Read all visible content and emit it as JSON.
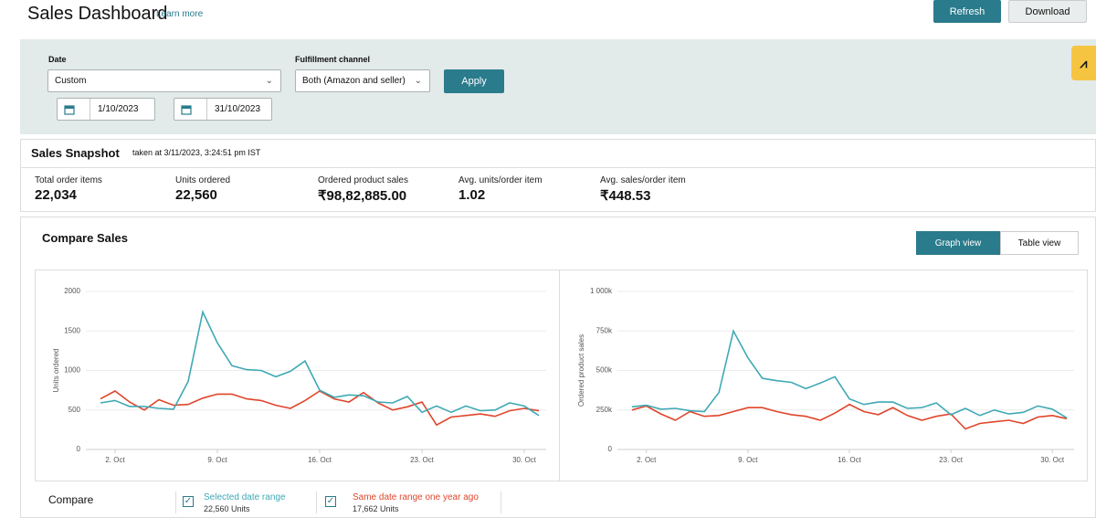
{
  "header": {
    "title": "Sales Dashboard",
    "learn_more": "Learn more",
    "refresh": "Refresh",
    "download": "Download"
  },
  "filters": {
    "date_label": "Date",
    "date_value": "Custom",
    "from": "1/10/2023",
    "to": "31/10/2023",
    "channel_label": "Fulfillment channel",
    "channel_value": "Both (Amazon and seller)",
    "apply": "Apply"
  },
  "snapshot": {
    "title": "Sales Snapshot",
    "taken": "taken at 3/11/2023, 3:24:51 pm IST",
    "metrics": [
      {
        "label": "Total order items",
        "value": "22,034"
      },
      {
        "label": "Units ordered",
        "value": "22,560"
      },
      {
        "label": "Ordered product sales",
        "value": "₹98,82,885.00"
      },
      {
        "label": "Avg. units/order item",
        "value": "1.02"
      },
      {
        "label": "Avg. sales/order item",
        "value": "₹448.53"
      }
    ]
  },
  "compare": {
    "title": "Compare Sales",
    "graph_view": "Graph view",
    "table_view": "Table view",
    "compare_label": "Compare",
    "totals": [
      "22,560 Units",
      "17,662 Units"
    ]
  },
  "chart_data": [
    {
      "type": "line",
      "ylabel": "Units ordered",
      "x": [
        1,
        2,
        3,
        4,
        5,
        6,
        7,
        8,
        9,
        10,
        11,
        12,
        13,
        14,
        15,
        16,
        17,
        18,
        19,
        20,
        21,
        22,
        23,
        24,
        25,
        26,
        27,
        28,
        29,
        30,
        31
      ],
      "xlim": [
        0,
        31.5
      ],
      "xticks": [
        {
          "value": 2,
          "label": "2. Oct"
        },
        {
          "value": 9,
          "label": "9. Oct"
        },
        {
          "value": 16,
          "label": "16. Oct"
        },
        {
          "value": 23,
          "label": "23. Oct"
        },
        {
          "value": 30,
          "label": "30. Oct"
        }
      ],
      "ylim": [
        0,
        2000
      ],
      "yticks": [
        0,
        500,
        1000,
        1500,
        2000
      ],
      "grid": true,
      "series": [
        {
          "name": "Selected date range",
          "color": "#3fa9b5",
          "values": [
            590,
            620,
            545,
            545,
            520,
            510,
            860,
            1740,
            1350,
            1060,
            1010,
            1000,
            920,
            990,
            1120,
            750,
            660,
            690,
            680,
            600,
            590,
            670,
            470,
            550,
            470,
            550,
            490,
            500,
            590,
            550,
            430
          ]
        },
        {
          "name": "Same date range one year ago",
          "color": "#e0452b",
          "values": [
            640,
            740,
            600,
            500,
            630,
            560,
            570,
            650,
            700,
            700,
            640,
            620,
            560,
            520,
            620,
            740,
            640,
            600,
            720,
            590,
            500,
            540,
            600,
            310,
            410,
            430,
            450,
            420,
            490,
            520,
            490
          ]
        }
      ]
    },
    {
      "type": "line",
      "ylabel": "Ordered product sales",
      "x": [
        1,
        2,
        3,
        4,
        5,
        6,
        7,
        8,
        9,
        10,
        11,
        12,
        13,
        14,
        15,
        16,
        17,
        18,
        19,
        20,
        21,
        22,
        23,
        24,
        25,
        26,
        27,
        28,
        29,
        30,
        31
      ],
      "xlim": [
        0,
        31.5
      ],
      "xticks": [
        {
          "value": 2,
          "label": "2. Oct"
        },
        {
          "value": 9,
          "label": "9. Oct"
        },
        {
          "value": 16,
          "label": "16. Oct"
        },
        {
          "value": 23,
          "label": "23. Oct"
        },
        {
          "value": 30,
          "label": "30. Oct"
        }
      ],
      "ylim": [
        0,
        1000000
      ],
      "yticks": [
        0,
        {
          "value": 250000,
          "label": "250k"
        },
        {
          "value": 500000,
          "label": "500k"
        },
        {
          "value": 750000,
          "label": "750k"
        },
        {
          "value": 1000000,
          "label": "1 000k"
        }
      ],
      "grid": true,
      "series": [
        {
          "color": "#3fa9b5",
          "values": [
            270000,
            280000,
            255000,
            260000,
            245000,
            240000,
            360000,
            750000,
            580000,
            450000,
            435000,
            425000,
            385000,
            420000,
            460000,
            320000,
            285000,
            300000,
            300000,
            260000,
            265000,
            295000,
            220000,
            260000,
            215000,
            250000,
            225000,
            235000,
            275000,
            255000,
            200000
          ]
        },
        {
          "color": "#e0452b",
          "values": [
            250000,
            275000,
            225000,
            185000,
            240000,
            210000,
            215000,
            240000,
            265000,
            265000,
            240000,
            220000,
            210000,
            185000,
            230000,
            285000,
            240000,
            220000,
            265000,
            215000,
            185000,
            210000,
            225000,
            130000,
            165000,
            175000,
            185000,
            165000,
            205000,
            215000,
            195000
          ]
        }
      ]
    }
  ]
}
